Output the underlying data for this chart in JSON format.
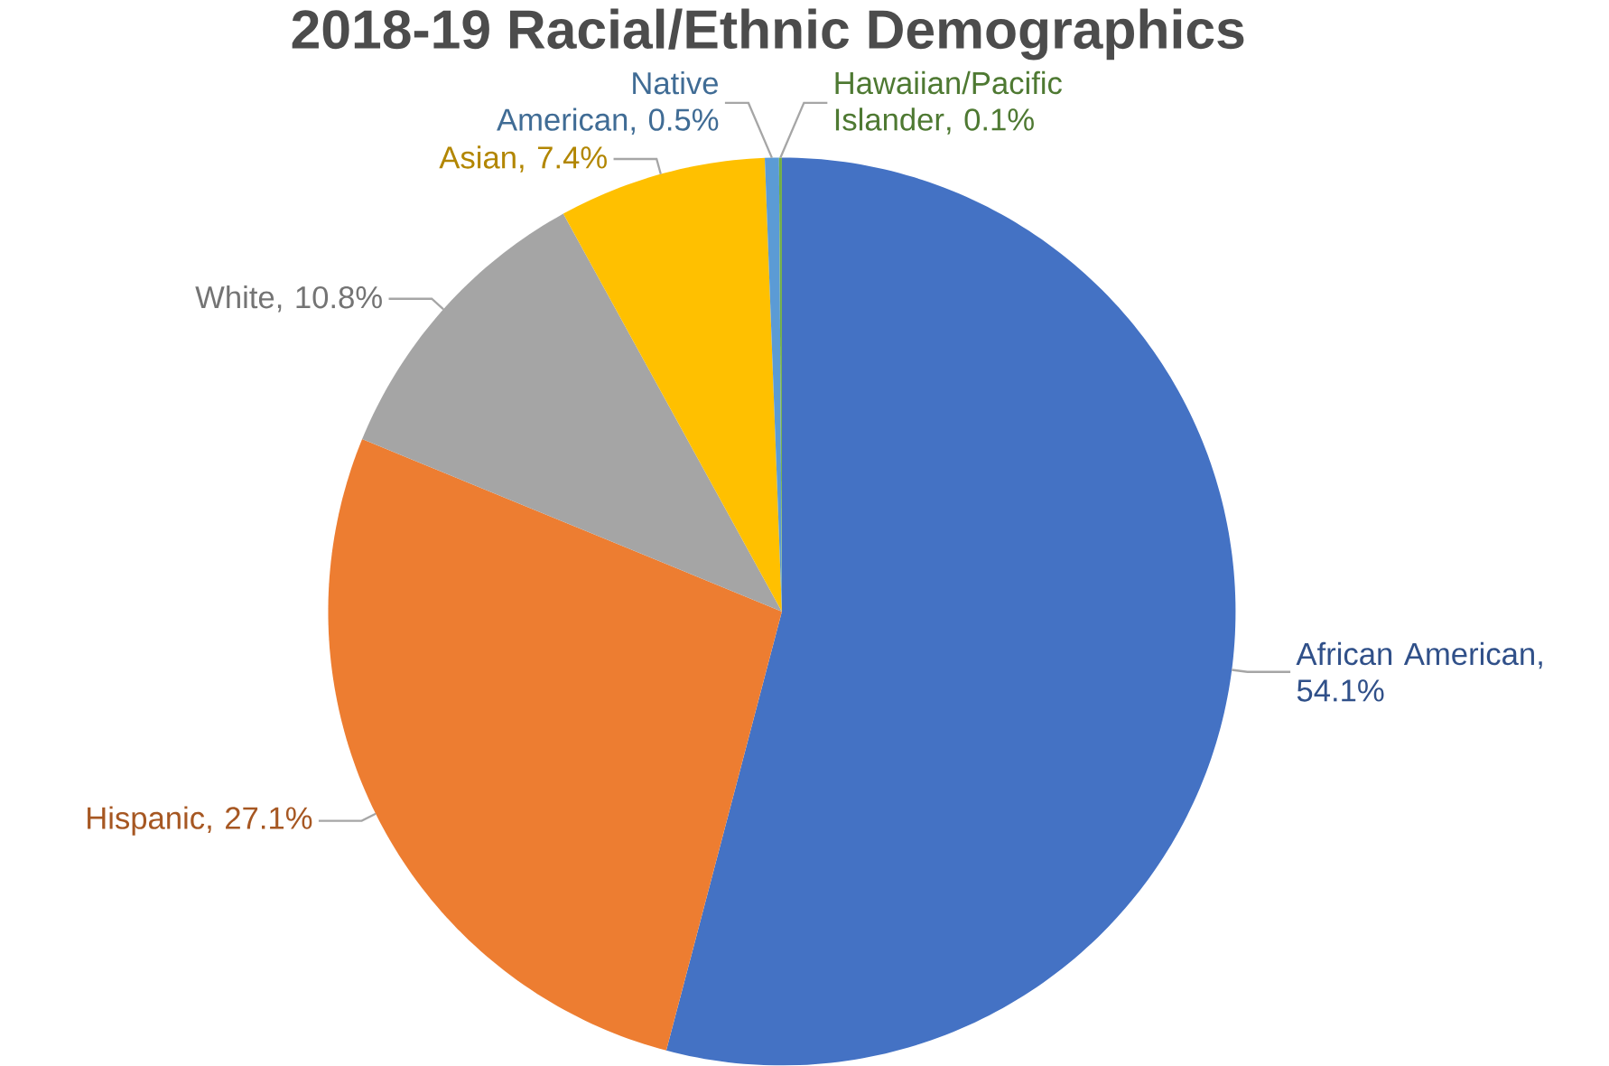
{
  "chart_data": {
    "type": "pie",
    "title": "2018-19 Racial/Ethnic Demographics",
    "categories": [
      "African American",
      "Hispanic",
      "White",
      "Asian",
      "Native American",
      "Hawaiian/Pacific Islander"
    ],
    "values": [
      54.1,
      27.1,
      10.8,
      7.4,
      0.5,
      0.1
    ],
    "value_labels": [
      ", 54.1%",
      ", 27.1%",
      ", 10.8%",
      ", 7.4%",
      ", 0.5%",
      ", 0.1%"
    ],
    "colors": [
      "#4472c4",
      "#ed7d31",
      "#a5a5a5",
      "#ffc000",
      "#5b9bd5",
      "#70ad47"
    ]
  }
}
